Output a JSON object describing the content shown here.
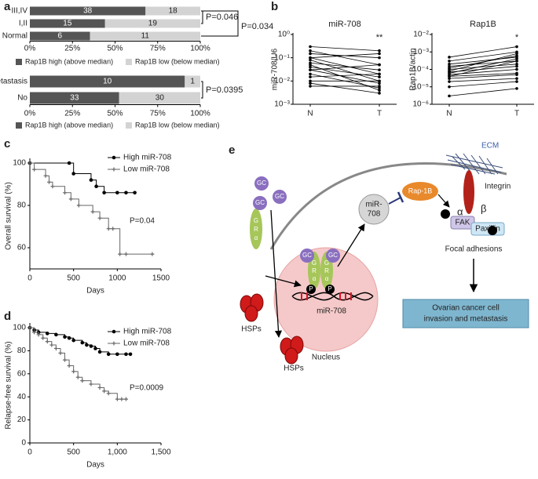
{
  "panel_labels": [
    "a",
    "b",
    "c",
    "d",
    "e"
  ],
  "chart_data": [
    {
      "type": "stacked_percent_barh",
      "categories": [
        "III,IV",
        "I,II",
        "Normal"
      ],
      "series": [
        {
          "name": "Rap1B high (above median)",
          "color": "#555555",
          "values": [
            38,
            15,
            6
          ]
        },
        {
          "name": "Rap1B low (below median)",
          "color": "#d3d3d3",
          "values": [
            18,
            19,
            11
          ]
        }
      ],
      "xlim": [
        0,
        100
      ],
      "xticks": [
        {
          "value": 0,
          "label": "0%"
        },
        {
          "value": 25,
          "label": "25%"
        },
        {
          "value": 50,
          "label": "50%"
        },
        {
          "value": 75,
          "label": "75%"
        },
        {
          "value": 100,
          "label": "100%"
        }
      ],
      "annotations": [
        "P=0.046",
        "P=0.034"
      ]
    },
    {
      "type": "stacked_percent_barh",
      "categories": [
        "Metastasis",
        "No"
      ],
      "series": [
        {
          "name": "Rap1B high (above median)",
          "color": "#555555",
          "values": [
            10,
            33
          ]
        },
        {
          "name": "Rap1B low (below median)",
          "color": "#d3d3d3",
          "values": [
            1,
            30
          ]
        }
      ],
      "xlim": [
        0,
        100
      ],
      "xticks": [
        {
          "value": 0,
          "label": "0%"
        },
        {
          "value": 25,
          "label": "25%"
        },
        {
          "value": 50,
          "label": "50%"
        },
        {
          "value": 75,
          "label": "75%"
        },
        {
          "value": 100,
          "label": "100%"
        }
      ],
      "annotations": [
        "P=0.0395"
      ]
    },
    {
      "type": "paired_log",
      "title": "miR-708",
      "y_label": "miR-708/U6",
      "categories": [
        "N",
        "T"
      ],
      "log_scale": true,
      "ylim": [
        0.001,
        1
      ],
      "yticks": [
        {
          "value": 0.001,
          "label": "10⁻³"
        },
        {
          "value": 0.01,
          "label": "10⁻²"
        },
        {
          "value": 0.1,
          "label": "10⁻¹"
        },
        {
          "value": 1,
          "label": "10⁰"
        }
      ],
      "color": "#000000",
      "annotation": "**",
      "series": [
        {
          "values": [
            0.3,
            0.2
          ]
        },
        {
          "values": [
            0.2,
            0.05
          ]
        },
        {
          "values": [
            0.15,
            0.1
          ]
        },
        {
          "values": [
            0.1,
            0.02
          ]
        },
        {
          "values": [
            0.08,
            0.01
          ]
        },
        {
          "values": [
            0.06,
            0.03
          ]
        },
        {
          "values": [
            0.05,
            0.004
          ]
        },
        {
          "values": [
            0.04,
            0.015
          ]
        },
        {
          "values": [
            0.03,
            0.05
          ]
        },
        {
          "values": [
            0.03,
            0.008
          ]
        },
        {
          "values": [
            0.02,
            0.005
          ]
        },
        {
          "values": [
            0.015,
            0.02
          ]
        },
        {
          "values": [
            0.01,
            0.01
          ]
        },
        {
          "values": [
            0.008,
            0.003
          ]
        },
        {
          "values": [
            0.006,
            0.006
          ]
        },
        {
          "values": [
            0.1,
            0.15
          ]
        }
      ]
    },
    {
      "type": "paired_log",
      "title": "Rap1B",
      "y_label": "Rap1B/actin",
      "categories": [
        "N",
        "T"
      ],
      "log_scale": true,
      "ylim": [
        1e-06,
        0.01
      ],
      "yticks": [
        {
          "value": 1e-06,
          "label": "10⁻⁶"
        },
        {
          "value": 1e-05,
          "label": "10⁻⁵"
        },
        {
          "value": 0.0001,
          "label": "10⁻⁴"
        },
        {
          "value": 0.001,
          "label": "10⁻³"
        },
        {
          "value": 0.01,
          "label": "10⁻²"
        }
      ],
      "color": "#000000",
      "annotation": "*",
      "series": [
        {
          "values": [
            0.0005,
            0.002
          ]
        },
        {
          "values": [
            0.0003,
            0.001
          ]
        },
        {
          "values": [
            0.0002,
            0.0005
          ]
        },
        {
          "values": [
            0.00015,
            0.0003
          ]
        },
        {
          "values": [
            0.0001,
            0.0002
          ]
        },
        {
          "values": [
            8e-05,
            0.0008
          ]
        },
        {
          "values": [
            6e-05,
            0.0004
          ]
        },
        {
          "values": [
            5e-05,
            0.0001
          ]
        },
        {
          "values": [
            4e-05,
            6e-05
          ]
        },
        {
          "values": [
            3e-05,
            5e-05
          ]
        },
        {
          "values": [
            2e-05,
            3e-05
          ]
        },
        {
          "values": [
            1e-05,
            2e-05
          ]
        },
        {
          "values": [
            3e-06,
            8e-06
          ]
        },
        {
          "values": [
            7e-05,
            0.00015
          ]
        },
        {
          "values": [
            0.00012,
            0.0006
          ]
        },
        {
          "values": [
            4e-05,
            0.0003
          ]
        }
      ]
    },
    {
      "type": "step",
      "x_label": "Days",
      "y_label": "Overall survival (%)",
      "annotation": "P=0.04",
      "xlim": [
        0,
        1500
      ],
      "xticks": [
        0,
        500,
        1000,
        1500
      ],
      "ylim": [
        50,
        100
      ],
      "yticks": [
        60,
        80,
        100
      ],
      "series": [
        {
          "name": "High miR-708",
          "color": "#000000",
          "marker": "circle",
          "x": [
            0,
            450,
            500,
            700,
            760,
            850,
            1000,
            1100,
            1200
          ],
          "values": [
            100,
            100,
            95,
            92,
            89,
            86,
            86,
            86,
            86
          ]
        },
        {
          "name": "Low miR-708",
          "color": "#666666",
          "marker": "plus",
          "x": [
            0,
            50,
            180,
            220,
            260,
            400,
            470,
            560,
            720,
            800,
            900,
            950,
            1030,
            1100,
            1400
          ],
          "values": [
            100,
            97,
            94,
            91,
            89,
            86,
            83,
            80,
            77,
            74,
            69,
            69,
            57,
            57,
            57
          ]
        }
      ]
    },
    {
      "type": "step",
      "x_label": "Days",
      "y_label": "Relapse-free survival (%)",
      "annotation": "P=0.0009",
      "xlim": [
        0,
        1500
      ],
      "xticks": [
        0,
        500,
        {
          "value": 1000,
          "label": "1,000"
        },
        {
          "value": 1500,
          "label": "1,500"
        }
      ],
      "ylim": [
        0,
        100
      ],
      "yticks": [
        0,
        20,
        40,
        60,
        80,
        100
      ],
      "series": [
        {
          "name": "High miR-708",
          "color": "#000000",
          "marker": "circle",
          "x": [
            0,
            50,
            100,
            200,
            300,
            400,
            450,
            500,
            600,
            650,
            700,
            750,
            800,
            900,
            1000,
            1100,
            1150
          ],
          "values": [
            100,
            98,
            96,
            95,
            94,
            92,
            91,
            89,
            87,
            85,
            84,
            82,
            79,
            77,
            77,
            77,
            77
          ]
        },
        {
          "name": "Low miR-708",
          "color": "#666666",
          "marker": "plus",
          "x": [
            0,
            50,
            100,
            150,
            200,
            250,
            300,
            350,
            400,
            450,
            500,
            550,
            600,
            700,
            800,
            850,
            900,
            1000,
            1050,
            1100
          ],
          "values": [
            100,
            96,
            94,
            91,
            88,
            85,
            82,
            78,
            72,
            67,
            62,
            57,
            54,
            51,
            48,
            45,
            43,
            38,
            38,
            38
          ]
        }
      ]
    }
  ],
  "diagram": {
    "ecm": "ECM",
    "integrin": "Integrin",
    "alpha": "α",
    "beta": "β",
    "fak": "FAK",
    "paxillin": "Paxillin",
    "focal_adhesions": "Focal adhesions",
    "outcome": [
      "Ovarian cancer cell",
      "invasion and metastasis"
    ],
    "rap1b": "Rap-1B",
    "mirna": [
      "miR-",
      "708"
    ],
    "gc": "GC",
    "receptor": [
      "G",
      "R",
      "α"
    ],
    "phospho": "P",
    "mirna_gene": "miR-708",
    "nucleus": "Nucleus",
    "hsps": "HSPs"
  }
}
